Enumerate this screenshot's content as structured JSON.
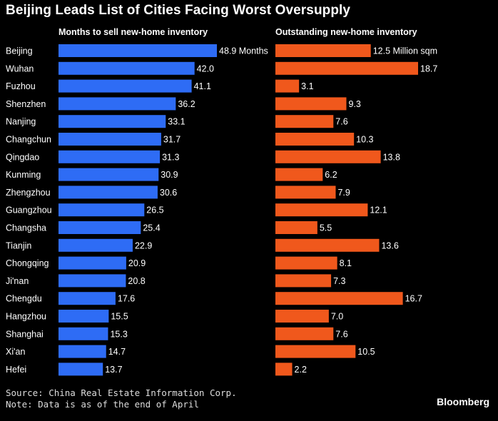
{
  "title": "Beijing Leads List of Cities Facing Worst Oversupply",
  "colors": {
    "months_bar": "#2e6cf5",
    "inventory_bar": "#f0581c",
    "background": "#000000",
    "text": "#ffffff"
  },
  "source_lines": [
    "Source: China Real Estate Information Corp.",
    "Note: Data is as of the end of April"
  ],
  "brand": "Bloomberg",
  "chart_data": [
    {
      "type": "bar",
      "orientation": "horizontal",
      "title": "Months to sell new-home inventory",
      "categories": [
        "Beijing",
        "Wuhan",
        "Fuzhou",
        "Shenzhen",
        "Nanjing",
        "Changchun",
        "Qingdao",
        "Kunming",
        "Zhengzhou",
        "Guangzhou",
        "Changsha",
        "Tianjin",
        "Chongqing",
        "Ji'nan",
        "Chengdu",
        "Hangzhou",
        "Shanghai",
        "Xi'an",
        "Hefei"
      ],
      "values": [
        48.9,
        42.0,
        41.1,
        36.2,
        33.1,
        31.7,
        31.3,
        30.9,
        30.6,
        26.5,
        25.4,
        22.9,
        20.9,
        20.8,
        17.6,
        15.5,
        15.3,
        14.7,
        13.7
      ],
      "labels": [
        "48.9 Months",
        "42.0",
        "41.1",
        "36.2",
        "33.1",
        "31.7",
        "31.3",
        "30.9",
        "30.6",
        "26.5",
        "25.4",
        "22.9",
        "20.9",
        "20.8",
        "17.6",
        "15.5",
        "15.3",
        "14.7",
        "13.7"
      ],
      "color": "#2e6cf5"
    },
    {
      "type": "bar",
      "orientation": "horizontal",
      "title": "Outstanding new-home inventory",
      "categories": [
        "Beijing",
        "Wuhan",
        "Fuzhou",
        "Shenzhen",
        "Nanjing",
        "Changchun",
        "Qingdao",
        "Kunming",
        "Zhengzhou",
        "Guangzhou",
        "Changsha",
        "Tianjin",
        "Chongqing",
        "Ji'nan",
        "Chengdu",
        "Hangzhou",
        "Shanghai",
        "Xi'an",
        "Hefei"
      ],
      "values": [
        12.5,
        18.7,
        3.1,
        9.3,
        7.6,
        10.3,
        13.8,
        6.2,
        7.9,
        12.1,
        5.5,
        13.6,
        8.1,
        7.3,
        16.7,
        7.0,
        7.6,
        10.5,
        2.2
      ],
      "labels": [
        "12.5 Million sqm",
        "18.7",
        "3.1",
        "9.3",
        "7.6",
        "10.3",
        "13.8",
        "6.2",
        "7.9",
        "12.1",
        "5.5",
        "13.6",
        "8.1",
        "7.3",
        "16.7",
        "7.0",
        "7.6",
        "10.5",
        "2.2"
      ],
      "color": "#f0581c"
    }
  ]
}
